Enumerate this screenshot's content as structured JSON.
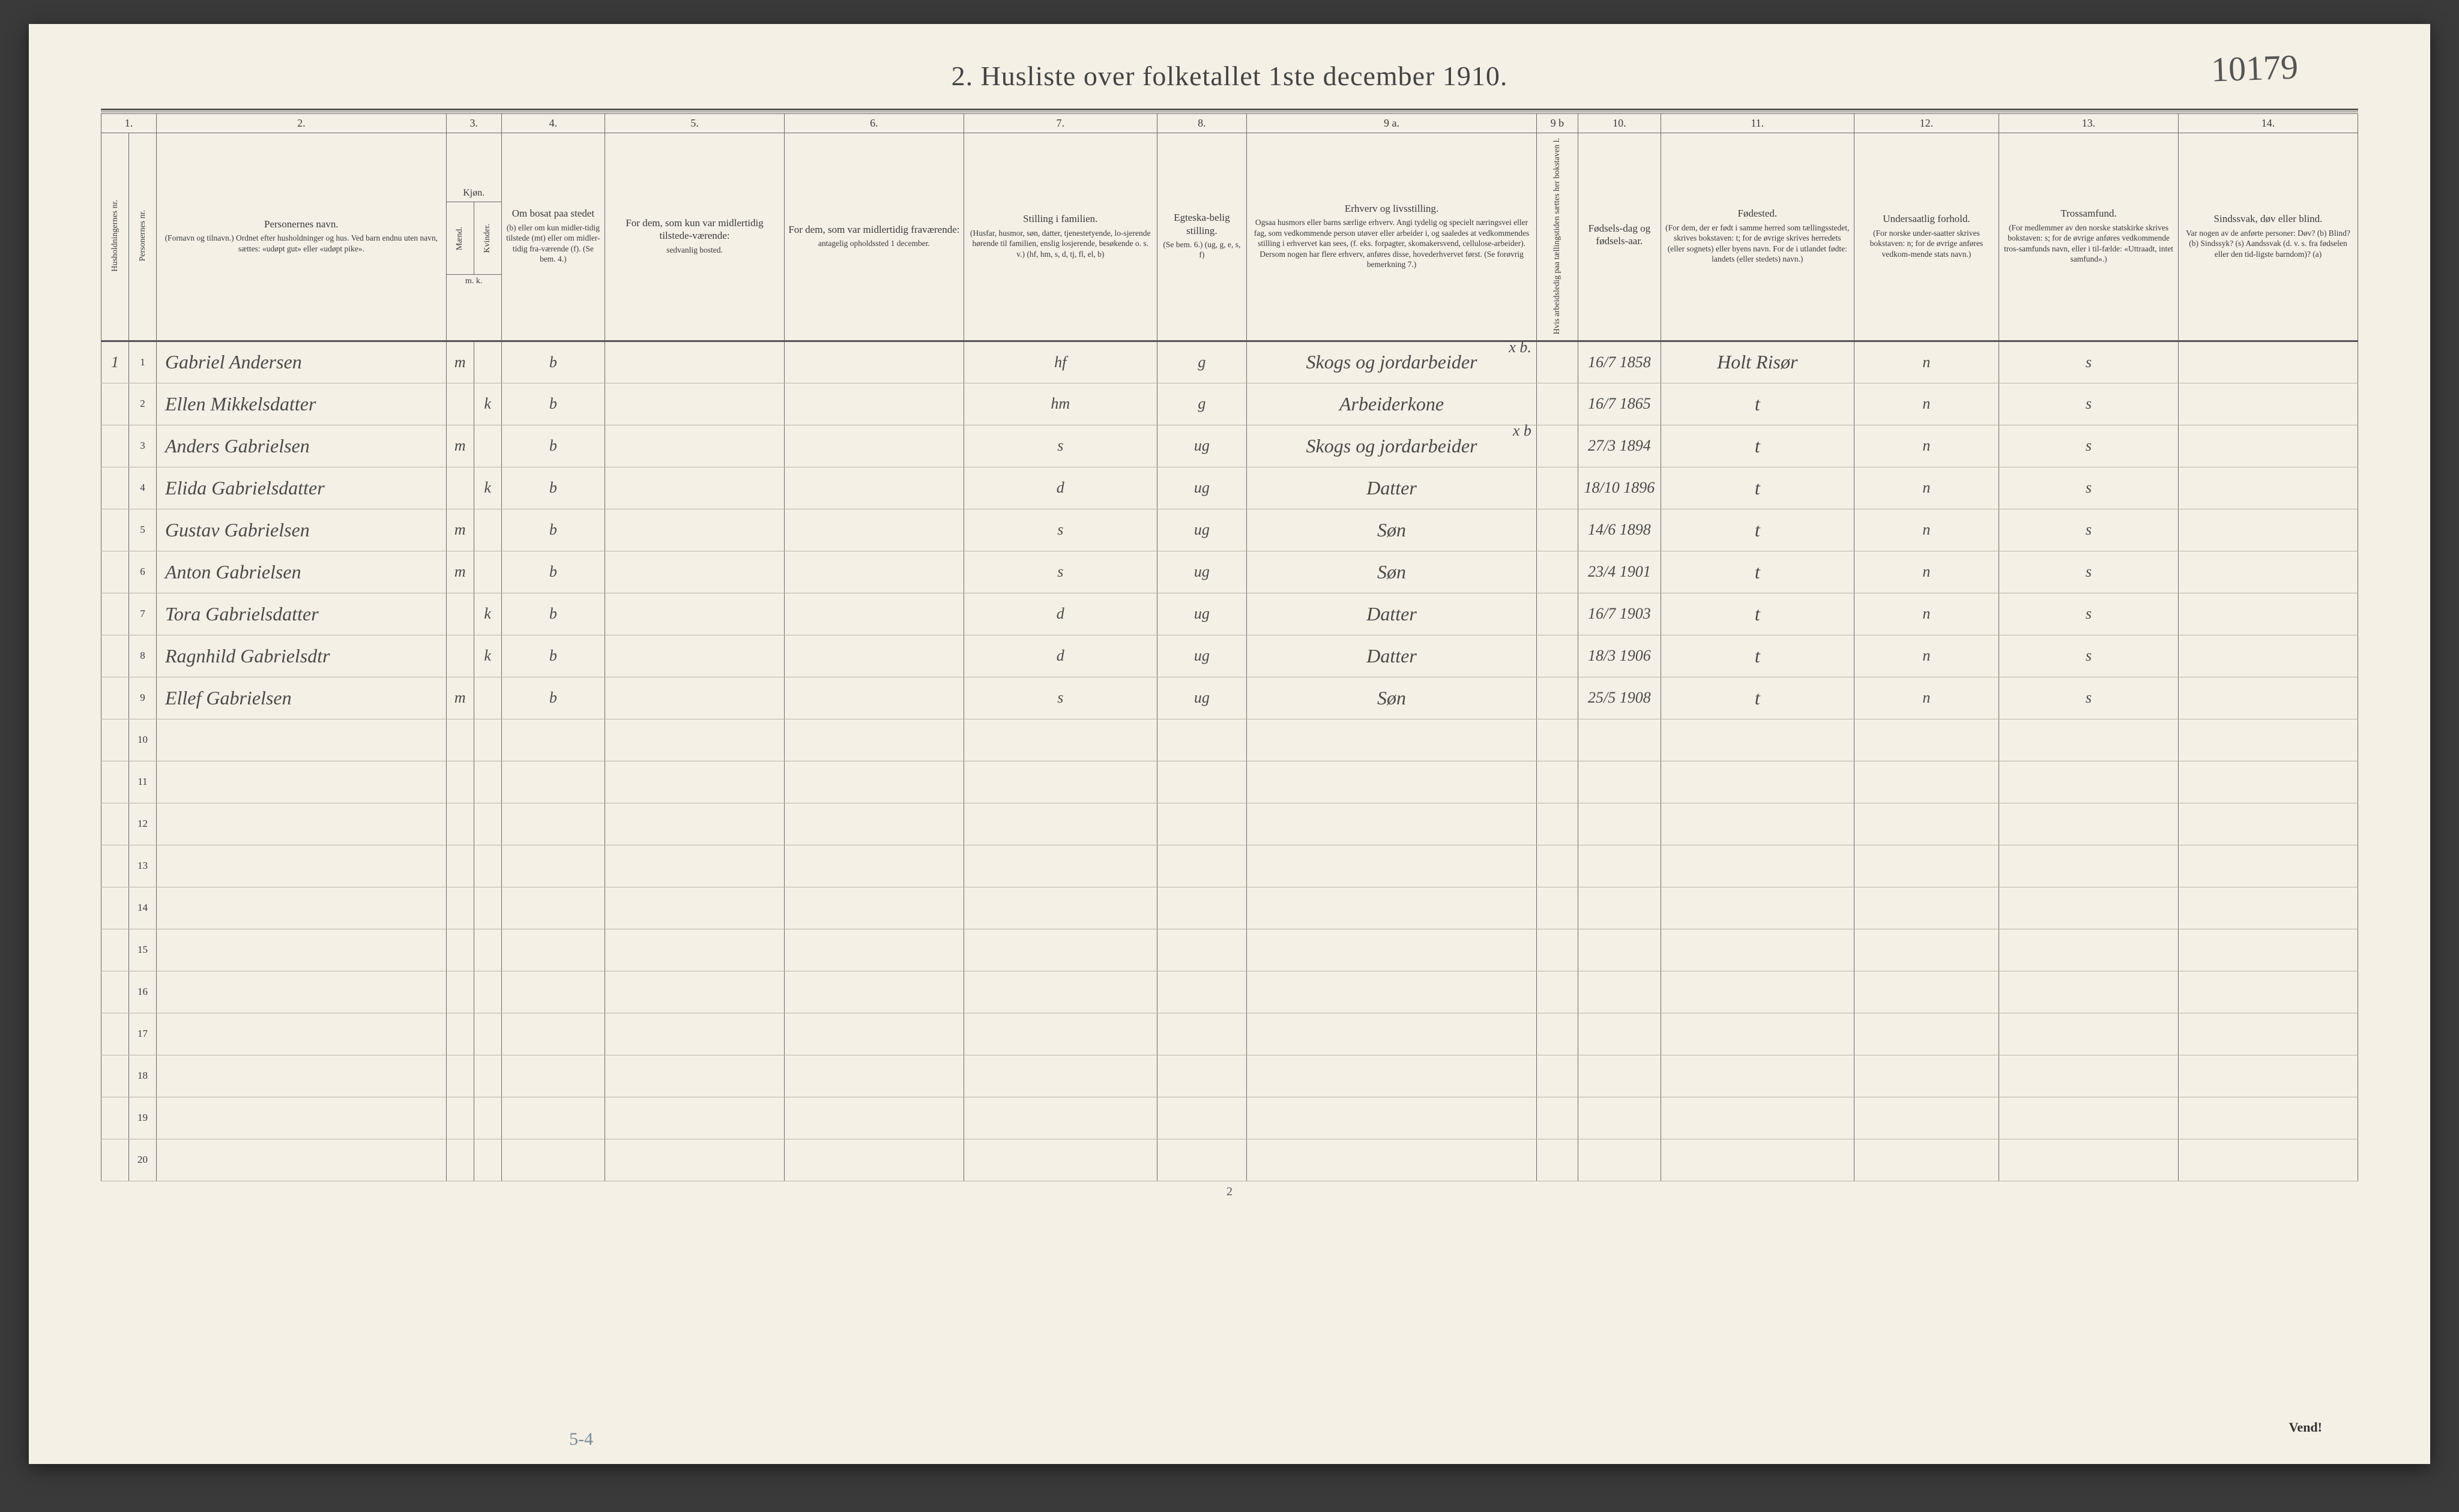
{
  "handwritten_topright": "10179",
  "title": "2.  Husliste over folketallet 1ste december 1910.",
  "pencil_bottom": "5-4",
  "footer_pagenum": "2",
  "vend": "Vend!",
  "colnums": [
    "1.",
    "2.",
    "3.",
    "4.",
    "5.",
    "6.",
    "7.",
    "8.",
    "9 a.",
    "9 b",
    "10.",
    "11.",
    "12.",
    "13.",
    "14."
  ],
  "headers": {
    "c1a": "Husholdningernes nr.",
    "c1b": "Personernes nr.",
    "c2_main": "Personernes navn.",
    "c2_sub": "(Fornavn og tilnavn.)\nOrdnet efter husholdninger og hus.\nVed barn endnu uten navn, sættes: «udøpt gut» eller «udøpt pike».",
    "c3_main": "Kjøn.",
    "c3a": "Mænd.",
    "c3b": "Kvinder.",
    "c3_sub": "m.    k.",
    "c4_main": "Om bosat paa stedet",
    "c4_sub": "(b) eller om kun midler-tidig tilstede (mt) eller om midler-tidig fra-værende (f).\n(Se bem. 4.)",
    "c5_main": "For dem, som kun var midlertidig tilstede-værende:",
    "c5_sub": "sedvanlig bosted.",
    "c6_main": "For dem, som var midlertidig fraværende:",
    "c6_sub": "antagelig opholdssted 1 december.",
    "c7_main": "Stilling i familien.",
    "c7_sub": "(Husfar, husmor, søn, datter, tjenestetyende, lo-sjerende hørende til familien, enslig losjerende, besøkende o. s. v.)\n(hf, hm, s, d, tj, fl, el, b)",
    "c8_main": "Egteska-belig stilling.",
    "c8_sub": "(Se bem. 6.)\n(ug, g, e, s, f)",
    "c9a_main": "Erhverv og livsstilling.",
    "c9a_sub": "Ogsaa husmors eller barns særlige erhverv. Angi tydelig og specielt næringsvei eller fag, som vedkommende person utøver eller arbeider i, og saaledes at vedkommendes stilling i erhvervet kan sees, (f. eks. forpagter, skomakersvend, cellulose-arbeider). Dersom nogen har flere erhverv, anføres disse, hovederhvervet først.\n(Se forøvrig bemerkning 7.)",
    "c9b": "Hvis arbeidsledig paa tællingstiden sættes her bokstaven l.",
    "c10_main": "Fødsels-dag og fødsels-aar.",
    "c11_main": "Fødested.",
    "c11_sub": "(For dem, der er født i samme herred som tællingsstedet, skrives bokstaven: t; for de øvrige skrives herredets (eller sognets) eller byens navn. For de i utlandet fødte: landets (eller stedets) navn.)",
    "c12_main": "Undersaatlig forhold.",
    "c12_sub": "(For norske under-saatter skrives bokstaven: n; for de øvrige anføres vedkom-mende stats navn.)",
    "c13_main": "Trossamfund.",
    "c13_sub": "(For medlemmer av den norske statskirke skrives bokstaven: s; for de øvrige anføres vedkommende tros-samfunds navn, eller i til-fælde: «Uttraadt, intet samfund».)",
    "c14_main": "Sindssvak, døv eller blind.",
    "c14_sub": "Var nogen av de anførte personer:\nDøv?      (b)\nBlind?    (b)\nSindssyk? (s)\nAandssvak (d. v. s. fra fødselen eller den tid-ligste barndom)? (a)"
  },
  "rows": [
    {
      "hnr": "1",
      "pnr": "1",
      "name": "Gabriel Andersen",
      "sex": "m",
      "res": "b",
      "fam": "hf",
      "mar": "g",
      "occ": "Skogs og jordarbeider",
      "occ_suffix": "x b.",
      "dob": "16/7 1858",
      "birthplace": "Holt Risør",
      "nat": "n",
      "rel": "s"
    },
    {
      "hnr": "",
      "pnr": "2",
      "name": "Ellen Mikkelsdatter",
      "sex": "k",
      "res": "b",
      "fam": "hm",
      "mar": "g",
      "occ": "Arbeiderkone",
      "occ_suffix": "",
      "dob": "16/7 1865",
      "birthplace": "t",
      "nat": "n",
      "rel": "s"
    },
    {
      "hnr": "",
      "pnr": "3",
      "name": "Anders Gabrielsen",
      "sex": "m",
      "res": "b",
      "fam": "s",
      "mar": "ug",
      "occ": "Skogs og jordarbeider",
      "occ_suffix": "x b",
      "dob": "27/3 1894",
      "birthplace": "t",
      "nat": "n",
      "rel": "s"
    },
    {
      "hnr": "",
      "pnr": "4",
      "name": "Elida Gabrielsdatter",
      "sex": "k",
      "res": "b",
      "fam": "d",
      "mar": "ug",
      "occ": "Datter",
      "occ_suffix": "",
      "dob": "18/10 1896",
      "birthplace": "t",
      "nat": "n",
      "rel": "s"
    },
    {
      "hnr": "",
      "pnr": "5",
      "name": "Gustav Gabrielsen",
      "sex": "m",
      "res": "b",
      "fam": "s",
      "mar": "ug",
      "occ": "Søn",
      "occ_suffix": "",
      "dob": "14/6 1898",
      "birthplace": "t",
      "nat": "n",
      "rel": "s"
    },
    {
      "hnr": "",
      "pnr": "6",
      "name": "Anton Gabrielsen",
      "sex": "m",
      "res": "b",
      "fam": "s",
      "mar": "ug",
      "occ": "Søn",
      "occ_suffix": "",
      "dob": "23/4 1901",
      "birthplace": "t",
      "nat": "n",
      "rel": "s"
    },
    {
      "hnr": "",
      "pnr": "7",
      "name": "Tora Gabrielsdatter",
      "sex": "k",
      "res": "b",
      "fam": "d",
      "mar": "ug",
      "occ": "Datter",
      "occ_suffix": "",
      "dob": "16/7 1903",
      "birthplace": "t",
      "nat": "n",
      "rel": "s"
    },
    {
      "hnr": "",
      "pnr": "8",
      "name": "Ragnhild Gabrielsdtr",
      "sex": "k",
      "res": "b",
      "fam": "d",
      "mar": "ug",
      "occ": "Datter",
      "occ_suffix": "",
      "dob": "18/3 1906",
      "birthplace": "t",
      "nat": "n",
      "rel": "s"
    },
    {
      "hnr": "",
      "pnr": "9",
      "name": "Ellef Gabrielsen",
      "sex": "m",
      "res": "b",
      "fam": "s",
      "mar": "ug",
      "occ": "Søn",
      "occ_suffix": "",
      "dob": "25/5 1908",
      "birthplace": "t",
      "nat": "n",
      "rel": "s"
    }
  ],
  "empty_row_nums": [
    "10",
    "11",
    "12",
    "13",
    "14",
    "15",
    "16",
    "17",
    "18",
    "19",
    "20"
  ],
  "colors": {
    "paper": "#f4f0e6",
    "ink": "#3a3a3a",
    "rule": "#6a6a6a",
    "hand": "#4a4a48"
  }
}
